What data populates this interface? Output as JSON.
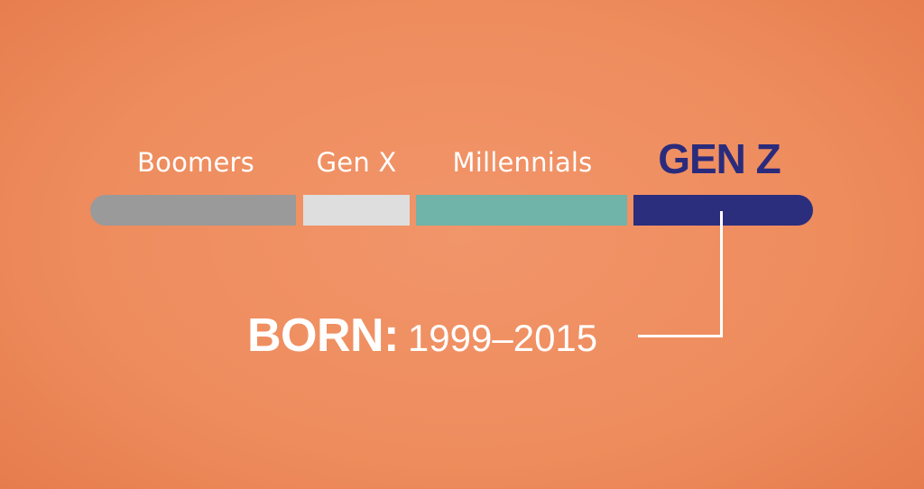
{
  "generations": [
    {
      "label": "Boomers",
      "color": "#9a9a9a"
    },
    {
      "label": "Gen X",
      "color": "#dedede"
    },
    {
      "label": "Millennials",
      "color": "#6fb3a9"
    },
    {
      "label": "GEN Z",
      "color": "#2b2e7d",
      "highlighted": true
    }
  ],
  "callout": {
    "key": "BORN:",
    "years": "1999–2015"
  },
  "colors": {
    "background": "#ee8c5d",
    "text": "#ffffff",
    "highlight": "#2a2b7c"
  }
}
